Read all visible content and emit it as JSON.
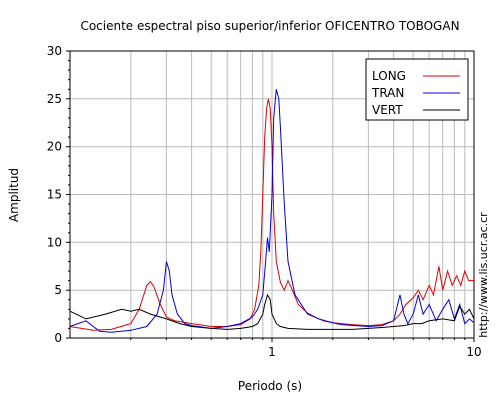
{
  "chart_data": {
    "type": "line",
    "title": "Cociente espectral piso superior/inferior OFICENTRO TOBOGAN",
    "xlabel": "Periodo (s)",
    "ylabel": "Amplitud",
    "x_scale": "log",
    "xlim": [
      0.1,
      10
    ],
    "ylim": [
      0,
      30
    ],
    "x_ticks": [
      {
        "value": 1,
        "label": "1"
      },
      {
        "value": 10,
        "label": "10"
      }
    ],
    "y_ticks": [
      {
        "value": 0,
        "label": "0"
      },
      {
        "value": 5,
        "label": "5"
      },
      {
        "value": 10,
        "label": "10"
      },
      {
        "value": 15,
        "label": "15"
      },
      {
        "value": 20,
        "label": "20"
      },
      {
        "value": 25,
        "label": "25"
      },
      {
        "value": 30,
        "label": "30"
      }
    ],
    "grid": true,
    "legend_position": "top-right",
    "side_text": "http://www.lis.ucr.ac.cr",
    "series": [
      {
        "name": "LONG",
        "color": "#dd0000",
        "x": [
          0.1,
          0.13,
          0.16,
          0.2,
          0.22,
          0.24,
          0.25,
          0.26,
          0.28,
          0.3,
          0.33,
          0.4,
          0.5,
          0.6,
          0.7,
          0.78,
          0.82,
          0.86,
          0.88,
          0.9,
          0.92,
          0.94,
          0.96,
          0.98,
          1.0,
          1.02,
          1.05,
          1.1,
          1.15,
          1.2,
          1.25,
          1.35,
          1.5,
          1.7,
          2.0,
          2.5,
          3.0,
          3.5,
          4.0,
          4.3,
          4.6,
          5.0,
          5.3,
          5.6,
          6.0,
          6.3,
          6.7,
          7.0,
          7.4,
          7.8,
          8.2,
          8.6,
          9.0,
          9.4,
          10.0
        ],
        "y": [
          1.2,
          0.8,
          0.9,
          1.5,
          3.0,
          5.5,
          5.9,
          5.4,
          3.5,
          2.2,
          1.8,
          1.5,
          1.2,
          1.2,
          1.4,
          2.0,
          3.0,
          5.5,
          9.0,
          15.0,
          21.0,
          24.0,
          25.0,
          24.0,
          20.0,
          13.0,
          8.0,
          5.8,
          5.0,
          6.0,
          5.2,
          3.5,
          2.6,
          2.0,
          1.6,
          1.4,
          1.3,
          1.4,
          1.8,
          2.5,
          3.5,
          4.2,
          5.0,
          4.0,
          5.5,
          4.5,
          7.5,
          5.0,
          7.0,
          5.5,
          6.5,
          5.5,
          7.0,
          6.0,
          6.0
        ]
      },
      {
        "name": "TRAN",
        "color": "#0000dd",
        "x": [
          0.1,
          0.12,
          0.14,
          0.16,
          0.2,
          0.24,
          0.27,
          0.29,
          0.3,
          0.31,
          0.32,
          0.34,
          0.37,
          0.4,
          0.5,
          0.6,
          0.7,
          0.8,
          0.85,
          0.9,
          0.93,
          0.95,
          0.97,
          1.0,
          1.02,
          1.05,
          1.08,
          1.1,
          1.15,
          1.2,
          1.3,
          1.5,
          1.8,
          2.2,
          3.0,
          3.5,
          4.0,
          4.3,
          4.5,
          4.7,
          5.0,
          5.3,
          5.6,
          6.0,
          6.5,
          7.0,
          7.5,
          8.0,
          8.5,
          9.0,
          9.5,
          10.0
        ],
        "y": [
          1.2,
          1.8,
          0.7,
          0.6,
          0.8,
          1.2,
          2.5,
          5.0,
          8.0,
          7.0,
          4.5,
          2.5,
          1.5,
          1.3,
          1.0,
          1.2,
          1.5,
          2.2,
          3.0,
          4.5,
          8.0,
          10.5,
          9.0,
          15.0,
          23.0,
          26.0,
          25.0,
          22.0,
          14.0,
          8.0,
          4.5,
          2.5,
          1.8,
          1.4,
          1.2,
          1.3,
          1.8,
          4.5,
          2.5,
          1.5,
          2.5,
          4.5,
          2.5,
          3.5,
          1.8,
          3.0,
          4.0,
          2.0,
          3.5,
          1.5,
          2.0,
          1.6
        ]
      },
      {
        "name": "VERT",
        "color": "#000000",
        "x": [
          0.1,
          0.12,
          0.15,
          0.18,
          0.2,
          0.22,
          0.25,
          0.3,
          0.35,
          0.4,
          0.5,
          0.6,
          0.7,
          0.8,
          0.85,
          0.9,
          0.92,
          0.95,
          0.98,
          1.0,
          1.05,
          1.1,
          1.2,
          1.5,
          2.0,
          2.5,
          3.0,
          3.5,
          4.0,
          4.5,
          5.0,
          5.5,
          6.0,
          7.0,
          8.0,
          8.5,
          9.0,
          9.5,
          10.0
        ],
        "y": [
          2.8,
          2.0,
          2.5,
          3.0,
          2.8,
          3.0,
          2.5,
          2.0,
          1.5,
          1.2,
          1.0,
          0.9,
          1.0,
          1.2,
          1.5,
          2.5,
          3.5,
          4.5,
          4.0,
          2.5,
          1.5,
          1.2,
          1.0,
          0.9,
          0.9,
          0.9,
          1.0,
          1.1,
          1.2,
          1.3,
          1.5,
          1.5,
          1.8,
          2.0,
          1.8,
          3.3,
          2.5,
          3.0,
          2.0
        ]
      }
    ]
  }
}
